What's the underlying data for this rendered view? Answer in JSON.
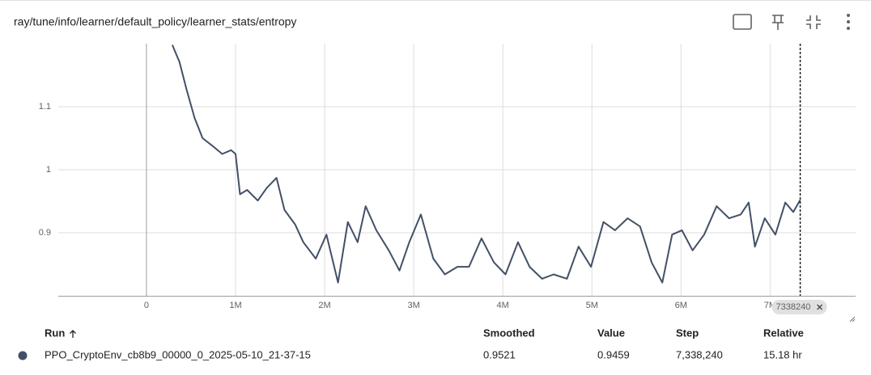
{
  "header": {
    "title": "ray/tune/info/learner/default_policy/learner_stats/entropy"
  },
  "chart_data": {
    "type": "line",
    "x": [
      290000,
      370000,
      450000,
      540000,
      630000,
      740000,
      850000,
      950000,
      1000000,
      1050000,
      1130000,
      1250000,
      1350000,
      1460000,
      1550000,
      1670000,
      1760000,
      1900000,
      2020000,
      2150000,
      2260000,
      2370000,
      2460000,
      2580000,
      2720000,
      2840000,
      2950000,
      3080000,
      3220000,
      3350000,
      3490000,
      3620000,
      3760000,
      3900000,
      4030000,
      4170000,
      4300000,
      4440000,
      4570000,
      4720000,
      4850000,
      4990000,
      5130000,
      5260000,
      5400000,
      5540000,
      5670000,
      5790000,
      5900000,
      6010000,
      6130000,
      6260000,
      6400000,
      6540000,
      6670000,
      6760000,
      6830000,
      6940000,
      7060000,
      7170000,
      7260000,
      7338240
    ],
    "series": [
      {
        "name": "PPO_CryptoEnv_cb8b9_00000_0_2025-05-10_21-37-15",
        "color": "#425066",
        "values": [
          1.198,
          1.171,
          1.127,
          1.082,
          1.05,
          1.038,
          1.025,
          1.031,
          1.025,
          0.961,
          0.968,
          0.951,
          0.971,
          0.987,
          0.936,
          0.913,
          0.885,
          0.859,
          0.897,
          0.821,
          0.917,
          0.885,
          0.942,
          0.904,
          0.872,
          0.84,
          0.885,
          0.929,
          0.859,
          0.834,
          0.846,
          0.846,
          0.891,
          0.853,
          0.834,
          0.885,
          0.846,
          0.827,
          0.834,
          0.827,
          0.878,
          0.846,
          0.917,
          0.904,
          0.923,
          0.91,
          0.853,
          0.821,
          0.897,
          0.904,
          0.872,
          0.897,
          0.942,
          0.923,
          0.929,
          0.948,
          0.878,
          0.923,
          0.897,
          0.948,
          0.933,
          0.952
        ]
      }
    ],
    "xlim": [
      -990000,
      7960000
    ],
    "ylim": [
      0.8,
      1.2
    ],
    "xticks": [
      0,
      {
        "value": 1000000,
        "label": "1M"
      },
      {
        "value": 2000000,
        "label": "2M"
      },
      {
        "value": 3000000,
        "label": "3M"
      },
      {
        "value": 4000000,
        "label": "4M"
      },
      {
        "value": 5000000,
        "label": "5M"
      },
      {
        "value": 6000000,
        "label": "6M"
      },
      {
        "value": 7000000,
        "label": "7M"
      }
    ],
    "yticks": [
      0.9,
      1,
      1.1
    ],
    "grid": true,
    "cursor": {
      "value": 7338240,
      "label": "7338240"
    }
  },
  "table": {
    "header": [
      "Run",
      "Smoothed",
      "Value",
      "Step",
      "Relative"
    ],
    "rows": [
      [
        "PPO_CryptoEnv_cb8b9_00000_0_2025-05-10_21-37-15",
        "0.9521",
        "0.9459",
        "7,338,240",
        "15.18 hr"
      ]
    ]
  }
}
